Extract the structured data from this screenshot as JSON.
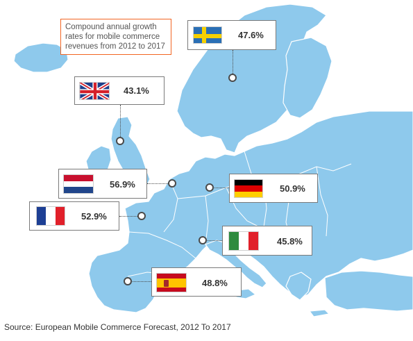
{
  "title": "Compound annual growth rates for mobile commerce revenues from 2012 to 2017",
  "source": "Source: European Mobile Commerce Forecast, 2012 To 2017",
  "countries": [
    {
      "name": "Sweden",
      "flag_icon": "sweden-flag-icon",
      "value": "47.6%"
    },
    {
      "name": "United Kingdom",
      "flag_icon": "uk-flag-icon",
      "value": "43.1%"
    },
    {
      "name": "Netherlands",
      "flag_icon": "netherlands-flag-icon",
      "value": "56.9%"
    },
    {
      "name": "Germany",
      "flag_icon": "germany-flag-icon",
      "value": "50.9%"
    },
    {
      "name": "France",
      "flag_icon": "france-flag-icon",
      "value": "52.9%"
    },
    {
      "name": "Italy",
      "flag_icon": "italy-flag-icon",
      "value": "45.8%"
    },
    {
      "name": "Spain",
      "flag_icon": "spain-flag-icon",
      "value": "48.8%"
    }
  ],
  "colors": {
    "land": "#8ec9ec",
    "title_border": "#f26522",
    "leader": "#4a4a4a"
  }
}
